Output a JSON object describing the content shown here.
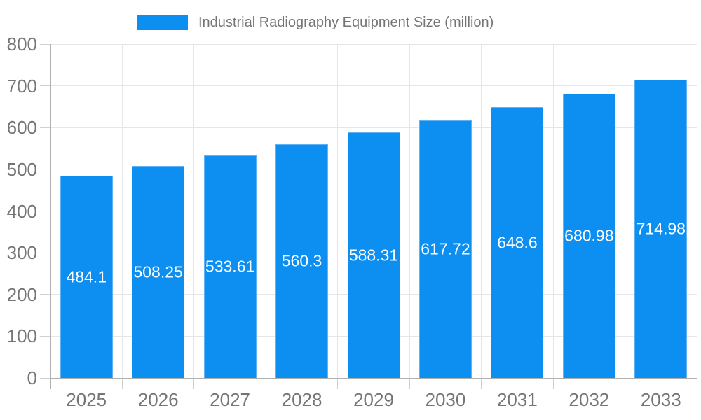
{
  "chart_data": {
    "type": "bar",
    "title": "Industrial Radiography Equipment Size (million)",
    "categories": [
      "2025",
      "2026",
      "2027",
      "2028",
      "2029",
      "2030",
      "2031",
      "2032",
      "2033"
    ],
    "values": [
      484.1,
      508.25,
      533.61,
      560.3,
      588.31,
      617.72,
      648.6,
      680.98,
      714.98
    ],
    "xlabel": "",
    "ylabel": "",
    "ylim": [
      0,
      800
    ],
    "yticks": [
      0,
      100,
      200,
      300,
      400,
      500,
      600,
      700,
      800
    ],
    "grid": true,
    "legend_position": "top",
    "colors": {
      "bar": "#0d8ff2",
      "bar_edge": "#5fb2f5",
      "axis_text": "#757575",
      "grid": "#e6e6e6",
      "tick": "#cfcfcf",
      "axis_line": "#b0b0b0",
      "value_label": "#ffffff",
      "background": "#ffffff"
    }
  }
}
